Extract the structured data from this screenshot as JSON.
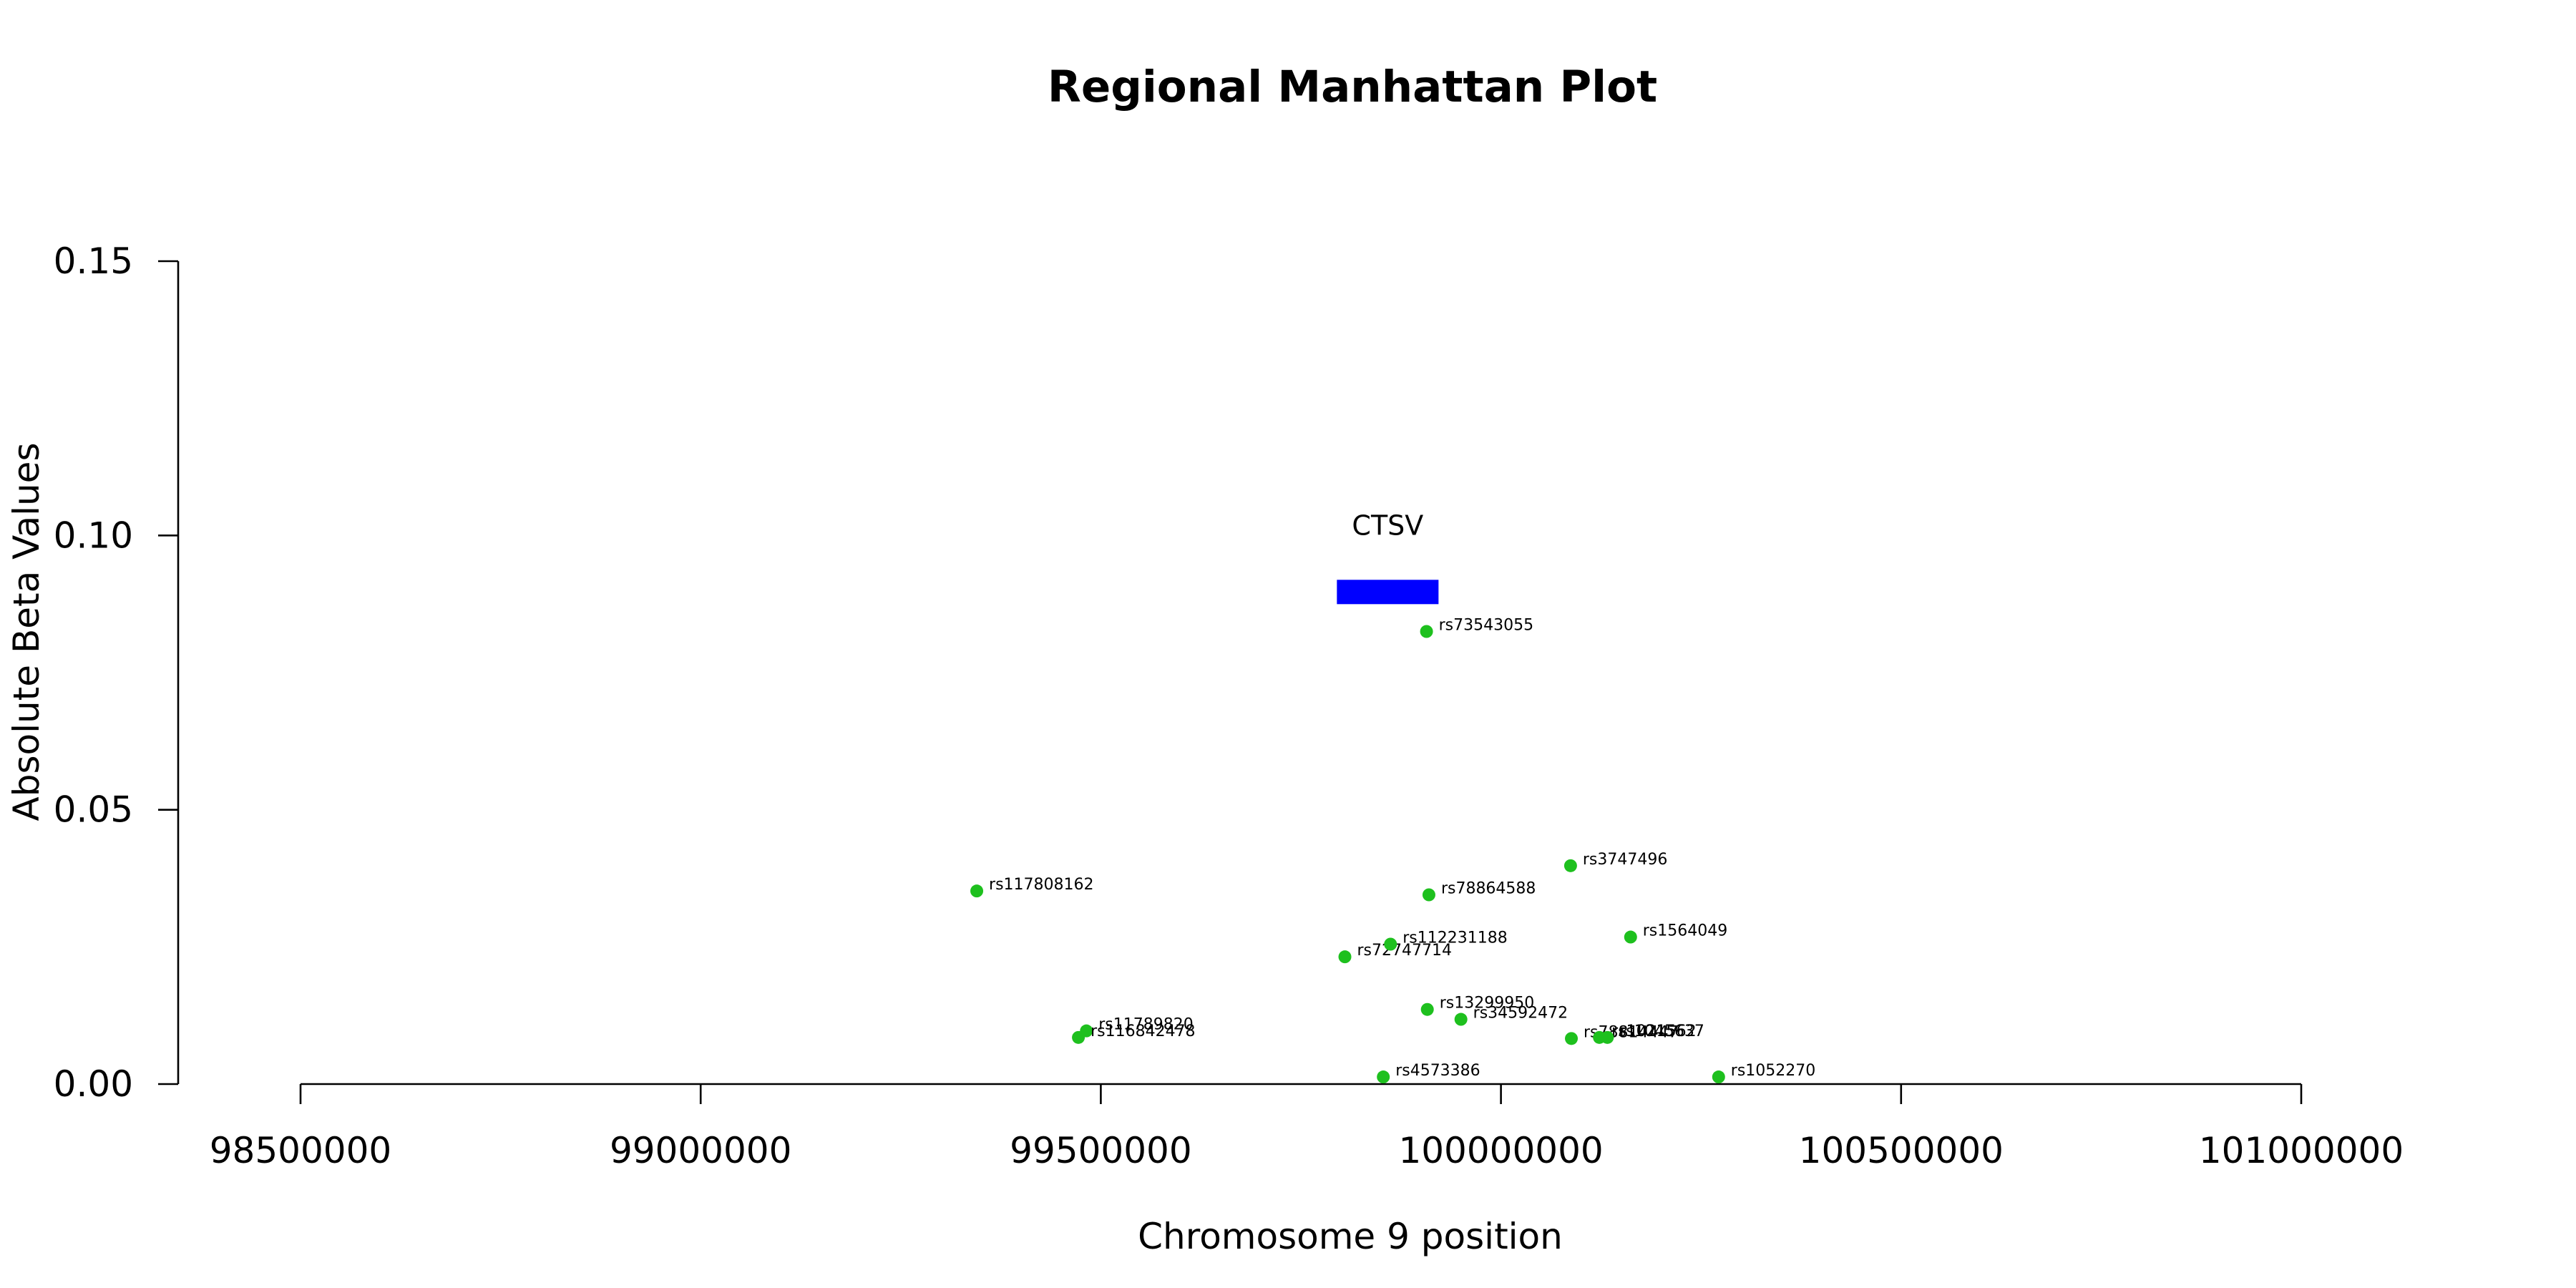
{
  "chart_data": {
    "type": "scatter",
    "title": "Regional Manhattan Plot",
    "xlabel": "Chromosome 9 position",
    "ylabel": "Absolute Beta Values",
    "xlim": [
      98500000,
      101000000
    ],
    "ylim": [
      0,
      0.15
    ],
    "xticks": [
      98500000,
      99000000,
      99500000,
      100000000,
      100500000,
      101000000
    ],
    "yticks": [
      0.0,
      0.05,
      0.1,
      0.15
    ],
    "xtick_labels": [
      "98500000",
      "99000000",
      "99500000",
      "100000000",
      "100500000",
      "101000000"
    ],
    "ytick_labels": [
      "0.00",
      "0.05",
      "0.10",
      "0.15"
    ],
    "grid": false,
    "point_color": "#1ec01e",
    "gene_color": "#0000ff",
    "points": [
      {
        "label": "rs117808162",
        "x": 99345000,
        "y": 0.0352
      },
      {
        "label": "rs11789820",
        "x": 99482000,
        "y": 0.0097
      },
      {
        "label": "rs116842478",
        "x": 99472000,
        "y": 0.0085
      },
      {
        "label": "rs72747714",
        "x": 99805000,
        "y": 0.0232
      },
      {
        "label": "rs112231188",
        "x": 99862000,
        "y": 0.0255
      },
      {
        "label": "rs4573386",
        "x": 99853000,
        "y": 0.0013
      },
      {
        "label": "rs73543055",
        "x": 99907000,
        "y": 0.0825
      },
      {
        "label": "rs78864588",
        "x": 99910000,
        "y": 0.0345
      },
      {
        "label": "rs13299950",
        "x": 99908000,
        "y": 0.0136
      },
      {
        "label": "rs34592472",
        "x": 99950000,
        "y": 0.0118
      },
      {
        "label": "rs3747496",
        "x": 100087000,
        "y": 0.0398
      },
      {
        "label": "rs78814447",
        "x": 100088000,
        "y": 0.0083
      },
      {
        "label": "rs1564049",
        "x": 100162000,
        "y": 0.0268
      },
      {
        "label": "rs1021562",
        "x": 100123000,
        "y": 0.0085
      },
      {
        "label": "rs1045637",
        "x": 100133000,
        "y": 0.0085
      },
      {
        "label": "rs1052270",
        "x": 100272000,
        "y": 0.0013
      }
    ],
    "genes": [
      {
        "name": "CTSV",
        "start": 99795000,
        "end": 99922000,
        "y": 0.0897
      }
    ]
  }
}
